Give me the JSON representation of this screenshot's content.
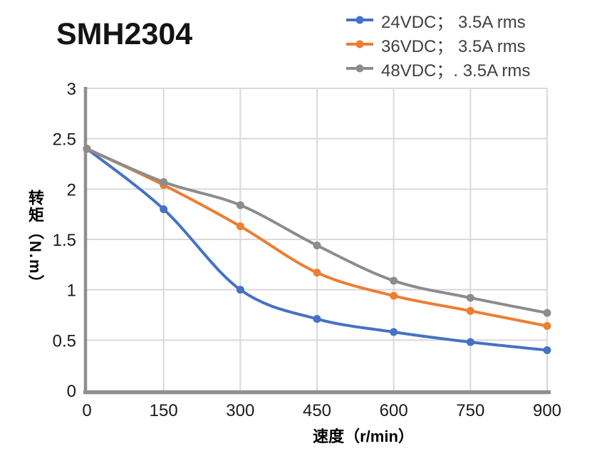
{
  "page": {
    "title": "SMH2304",
    "background": "#ffffff"
  },
  "chart_data": {
    "type": "line",
    "title": "SMH2304",
    "xlabel": "速度（r/min）",
    "ylabel": "转矩（N.m）",
    "x": [
      0,
      150,
      300,
      450,
      600,
      750,
      900
    ],
    "series": [
      {
        "name": "24VDC； 3.5A rms",
        "color": "#4472c4",
        "values": [
          2.4,
          1.8,
          1.0,
          0.71,
          0.58,
          0.48,
          0.4
        ]
      },
      {
        "name": "36VDC； 3.5A rms",
        "color": "#ed7d31",
        "values": [
          2.4,
          2.04,
          1.63,
          1.17,
          0.94,
          0.79,
          0.64
        ]
      },
      {
        "name": "48VDC；. 3.5A rms",
        "color": "#8c8c8c",
        "values": [
          2.4,
          2.07,
          1.84,
          1.44,
          1.09,
          0.92,
          0.77
        ]
      }
    ],
    "xlim": [
      0,
      900
    ],
    "ylim": [
      0,
      3
    ],
    "x_ticks": [
      0,
      150,
      300,
      450,
      600,
      750,
      900
    ],
    "y_ticks": [
      0,
      0.5,
      1,
      1.5,
      2,
      2.5,
      3
    ],
    "x_tick_labels": [
      "0",
      "150",
      "300",
      "450",
      "600",
      "750",
      "900"
    ],
    "y_tick_labels": [
      "0",
      "0.5",
      "1",
      "1.5",
      "2",
      "2.5",
      "3"
    ],
    "grid": true,
    "legend_position": "top-right",
    "line_style": "smooth",
    "marker": "circle"
  },
  "style": {
    "grid_color": "#d9d9d9",
    "axis_color": "#8f8f8f",
    "tick_text_color": "#1a1a1a",
    "legend_text_color": "#404040",
    "title_color": "#141414"
  }
}
